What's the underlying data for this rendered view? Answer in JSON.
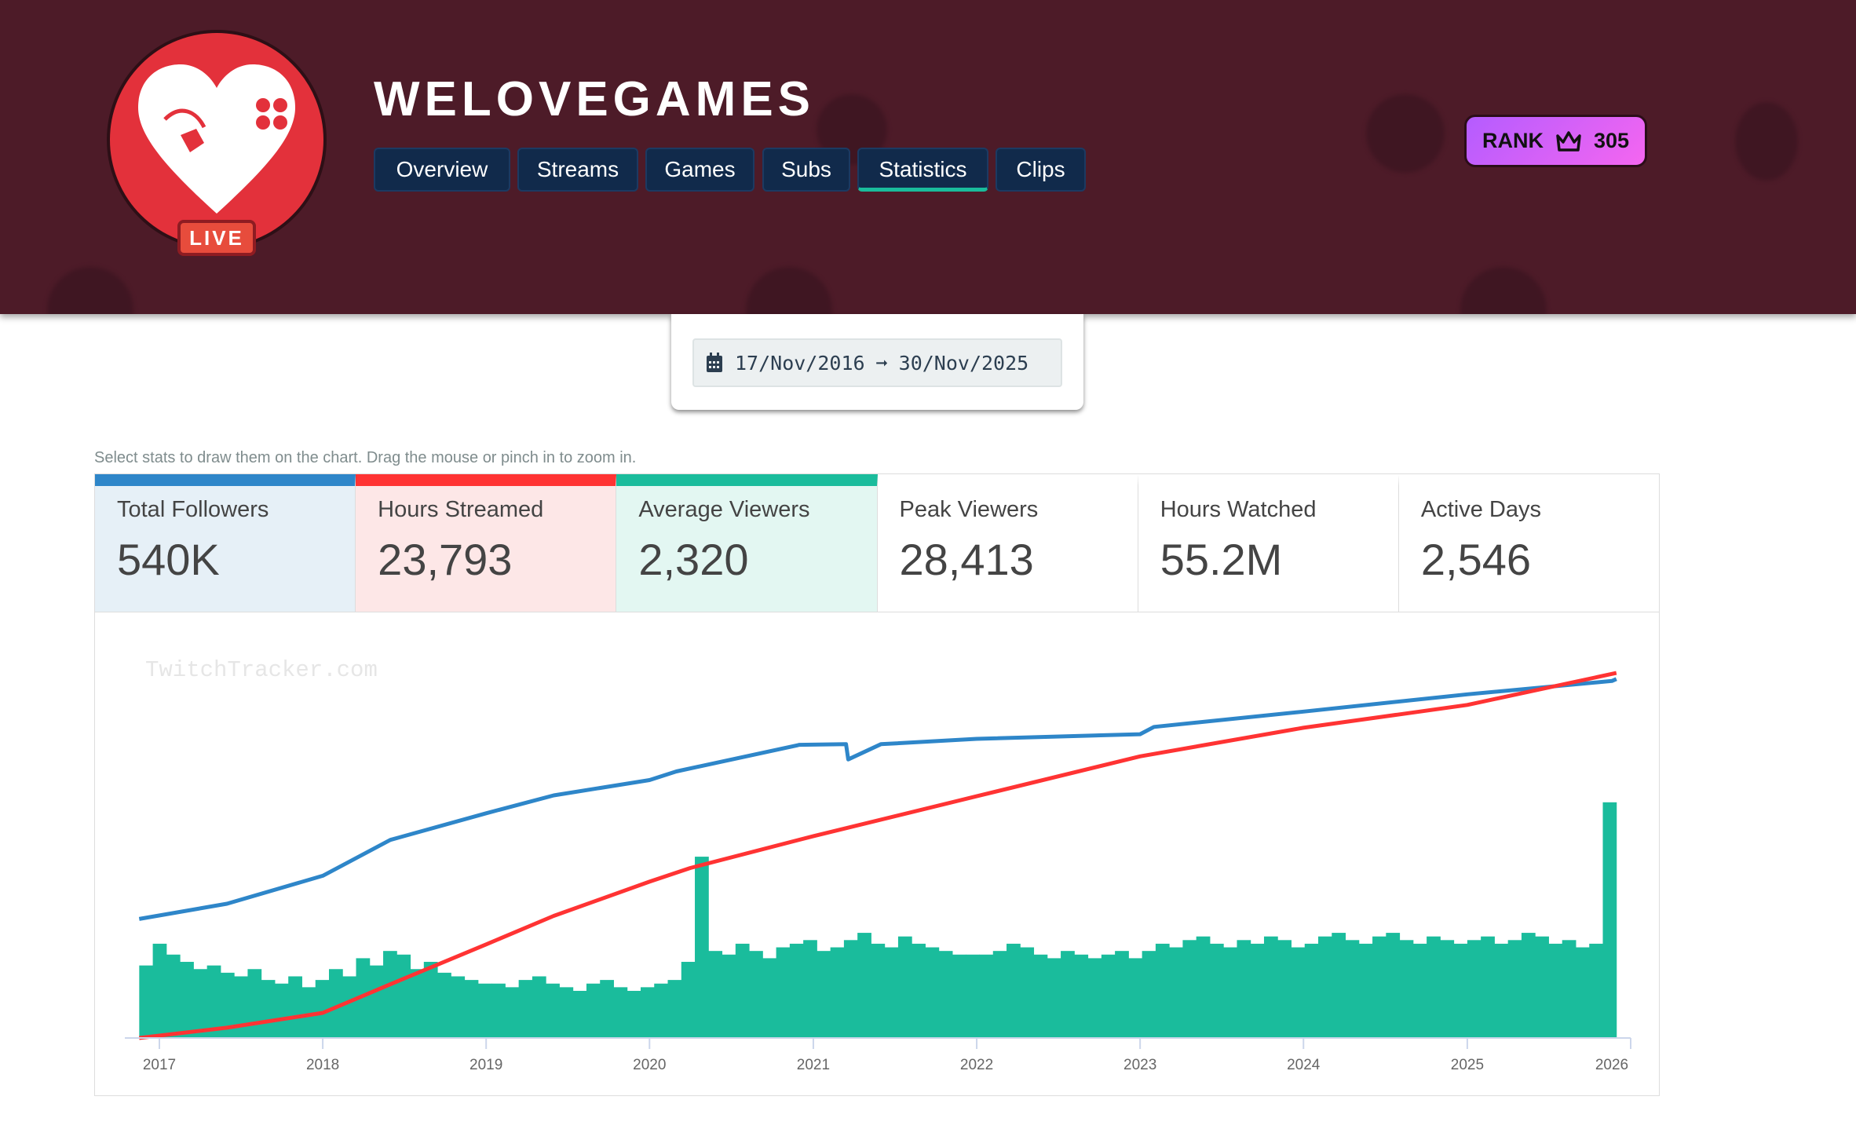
{
  "header": {
    "channel_name": "WELOVEGAMES",
    "live_badge": "LIVE",
    "nav": [
      {
        "label": "Overview"
      },
      {
        "label": "Streams"
      },
      {
        "label": "Games"
      },
      {
        "label": "Subs"
      },
      {
        "label": "Statistics",
        "active": true
      },
      {
        "label": "Clips"
      }
    ],
    "rank": {
      "label": "RANK",
      "icon": "crown-icon",
      "value": "305"
    }
  },
  "date_range": {
    "icon": "calendar-icon",
    "start": "17/Nov/2016",
    "arrow": "➞",
    "end": "30/Nov/2025"
  },
  "hint": "Select stats to draw them on the chart. Drag the mouse or pinch in to zoom in.",
  "stats": [
    {
      "label": "Total Followers",
      "value": "540K",
      "color": "#2e86c9",
      "bg": "#e6f0f7",
      "selected": true
    },
    {
      "label": "Hours Streamed",
      "value": "23,793",
      "color": "#ff3333",
      "bg": "#fde7e7",
      "selected": true
    },
    {
      "label": "Average Viewers",
      "value": "2,320",
      "color": "#1abc9c",
      "bg": "#e3f7f2",
      "selected": true
    },
    {
      "label": "Peak Viewers",
      "value": "28,413",
      "selected": false
    },
    {
      "label": "Hours Watched",
      "value": "55.2M",
      "selected": false
    },
    {
      "label": "Active Days",
      "value": "2,546",
      "selected": false
    }
  ],
  "chart_data": {
    "type": "line",
    "watermark": "TwitchTracker.com",
    "x_ticks": [
      "2017",
      "2018",
      "2019",
      "2020",
      "2021",
      "2022",
      "2023",
      "2024",
      "2025",
      "2026"
    ],
    "xlim": [
      "2016-11-17",
      "2025-11-30"
    ],
    "grid": false,
    "series": [
      {
        "name": "Total Followers",
        "type": "line",
        "color": "#2e86c9",
        "ylim": [
          0,
          600000
        ],
        "points": [
          [
            "2016-11-17",
            179000
          ],
          [
            "2017-06-01",
            202000
          ],
          [
            "2018-01-01",
            244000
          ],
          [
            "2018-06-01",
            298000
          ],
          [
            "2019-01-01",
            338000
          ],
          [
            "2019-06-01",
            365000
          ],
          [
            "2020-01-01",
            388000
          ],
          [
            "2020-03-01",
            401000
          ],
          [
            "2020-12-01",
            441000
          ],
          [
            "2021-03-15",
            442000
          ],
          [
            "2021-03-20",
            419000
          ],
          [
            "2021-06-01",
            442000
          ],
          [
            "2022-01-01",
            450000
          ],
          [
            "2023-01-01",
            457000
          ],
          [
            "2023-02-01",
            468000
          ],
          [
            "2024-01-01",
            491000
          ],
          [
            "2025-01-01",
            517000
          ],
          [
            "2025-11-20",
            537000
          ],
          [
            "2025-11-30",
            540000
          ]
        ]
      },
      {
        "name": "Hours Streamed",
        "type": "line",
        "color": "#ff3333",
        "ylim": [
          0,
          26000
        ],
        "points": [
          [
            "2016-11-17",
            0
          ],
          [
            "2017-06-01",
            670
          ],
          [
            "2018-01-01",
            1640
          ],
          [
            "2018-06-01",
            3500
          ],
          [
            "2019-01-01",
            6100
          ],
          [
            "2019-06-01",
            7960
          ],
          [
            "2020-01-01",
            10190
          ],
          [
            "2020-04-01",
            11080
          ],
          [
            "2021-01-01",
            13160
          ],
          [
            "2022-01-01",
            15760
          ],
          [
            "2023-01-01",
            18360
          ],
          [
            "2024-01-01",
            20220
          ],
          [
            "2025-01-01",
            21710
          ],
          [
            "2025-11-30",
            23793
          ]
        ]
      },
      {
        "name": "Average Viewers",
        "type": "bar",
        "color": "#1abc9c",
        "ylim": [
          0,
          11000
        ],
        "start_month": "2016-11",
        "monthly_values": [
          2000,
          2600,
          2300,
          2100,
          1900,
          2000,
          1800,
          1700,
          1900,
          1600,
          1500,
          1700,
          1400,
          1600,
          1900,
          1700,
          2200,
          2000,
          2400,
          2300,
          1900,
          2100,
          1800,
          1700,
          1600,
          1500,
          1500,
          1400,
          1600,
          1700,
          1500,
          1400,
          1300,
          1500,
          1600,
          1400,
          1300,
          1400,
          1500,
          1600,
          2100,
          5000,
          2400,
          2300,
          2600,
          2400,
          2200,
          2500,
          2600,
          2700,
          2400,
          2500,
          2700,
          2900,
          2600,
          2500,
          2800,
          2600,
          2500,
          2400,
          2300,
          2300,
          2300,
          2400,
          2600,
          2500,
          2300,
          2200,
          2400,
          2300,
          2200,
          2300,
          2400,
          2200,
          2400,
          2600,
          2500,
          2700,
          2800,
          2600,
          2500,
          2700,
          2600,
          2800,
          2700,
          2500,
          2600,
          2800,
          2900,
          2700,
          2600,
          2800,
          2900,
          2700,
          2600,
          2800,
          2700,
          2600,
          2700,
          2800,
          2600,
          2700,
          2900,
          2800,
          2600,
          2700,
          2500,
          2600,
          6500
        ]
      }
    ]
  }
}
